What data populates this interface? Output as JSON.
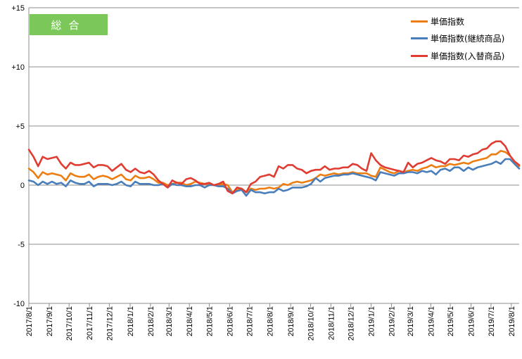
{
  "badge": {
    "label": "総合"
  },
  "chart_data": {
    "type": "line",
    "title": "総合",
    "ylim": [
      -10,
      15
    ],
    "yticks": [
      {
        "value": 15,
        "label": "+15"
      },
      {
        "value": 10,
        "label": "+10"
      },
      {
        "value": 5,
        "label": "+5"
      },
      {
        "value": 0,
        "label": "0"
      },
      {
        "value": -5,
        "label": "-5"
      },
      {
        "value": -10,
        "label": "-10"
      }
    ],
    "xlim_weeks": [
      0,
      106
    ],
    "xticks": [
      {
        "week": 0,
        "label": "2017/8/1"
      },
      {
        "week": 4.4,
        "label": "2017/9/1"
      },
      {
        "week": 8.7,
        "label": "2017/10/1"
      },
      {
        "week": 13.1,
        "label": "2017/11/1"
      },
      {
        "week": 17.4,
        "label": "2017/12/1"
      },
      {
        "week": 21.9,
        "label": "2018/1/1"
      },
      {
        "week": 26.3,
        "label": "2018/2/1"
      },
      {
        "week": 30.3,
        "label": "2018/3/1"
      },
      {
        "week": 34.7,
        "label": "2018/4/1"
      },
      {
        "week": 39.0,
        "label": "2018/5/1"
      },
      {
        "week": 43.4,
        "label": "2018/6/1"
      },
      {
        "week": 47.7,
        "label": "2018/7/1"
      },
      {
        "week": 52.1,
        "label": "2018/8/1"
      },
      {
        "week": 56.6,
        "label": "2018/9/1"
      },
      {
        "week": 60.9,
        "label": "2018/10/1"
      },
      {
        "week": 65.3,
        "label": "2018/11/1"
      },
      {
        "week": 69.6,
        "label": "2018/12/1"
      },
      {
        "week": 74.0,
        "label": "2019/1/1"
      },
      {
        "week": 78.4,
        "label": "2019/2/1"
      },
      {
        "week": 82.4,
        "label": "2019/3/1"
      },
      {
        "week": 86.9,
        "label": "2019/4/1"
      },
      {
        "week": 91.1,
        "label": "2019/5/1"
      },
      {
        "week": 95.6,
        "label": "2019/6/1"
      },
      {
        "week": 99.9,
        "label": "2019/7/1"
      },
      {
        "week": 104.3,
        "label": "2019/8/1"
      }
    ],
    "series": [
      {
        "name": "単価指数",
        "color": "#ed7d10",
        "values": [
          1.4,
          1.1,
          0.6,
          1.1,
          0.9,
          1.0,
          0.9,
          0.8,
          0.4,
          1.0,
          0.8,
          0.7,
          0.7,
          0.9,
          0.5,
          0.7,
          0.8,
          0.7,
          0.5,
          0.7,
          0.9,
          0.5,
          0.4,
          0.8,
          0.6,
          0.6,
          0.7,
          0.5,
          0.2,
          0.2,
          0.0,
          0.1,
          0.2,
          0.2,
          0.0,
          0.1,
          0.3,
          0.2,
          0.1,
          0.1,
          0.0,
          0.0,
          0.1,
          0.0,
          -0.6,
          -0.4,
          -0.3,
          -0.6,
          -0.3,
          -0.4,
          -0.3,
          -0.3,
          -0.2,
          -0.3,
          -0.2,
          0.1,
          0.0,
          0.2,
          0.3,
          0.2,
          0.3,
          0.4,
          0.6,
          0.9,
          0.8,
          0.9,
          1.0,
          0.9,
          1.0,
          1.0,
          1.1,
          1.0,
          1.0,
          1.0,
          0.8,
          0.7,
          1.5,
          1.3,
          1.1,
          1.0,
          1.2,
          1.1,
          1.2,
          1.3,
          1.2,
          1.4,
          1.5,
          1.7,
          1.5,
          1.6,
          1.6,
          1.8,
          1.7,
          1.8,
          1.9,
          1.8,
          2.0,
          2.1,
          2.2,
          2.3,
          2.6,
          2.6,
          2.9,
          2.8,
          2.5,
          2.0,
          1.6
        ]
      },
      {
        "name": "単価指数(継続商品)",
        "color": "#4a7ebb",
        "values": [
          0.4,
          0.3,
          0.0,
          0.3,
          0.1,
          0.3,
          0.1,
          0.2,
          -0.1,
          0.4,
          0.2,
          0.1,
          0.1,
          0.3,
          -0.1,
          0.1,
          0.1,
          0.1,
          0.0,
          0.1,
          0.3,
          0.0,
          -0.1,
          0.3,
          0.1,
          0.1,
          0.1,
          0.0,
          0.0,
          0.1,
          -0.2,
          0.1,
          0.0,
          0.0,
          -0.1,
          -0.1,
          0.0,
          0.0,
          -0.2,
          0.0,
          0.0,
          -0.1,
          -0.1,
          -0.3,
          -0.7,
          -0.5,
          -0.4,
          -0.9,
          -0.4,
          -0.6,
          -0.6,
          -0.7,
          -0.6,
          -0.6,
          -0.3,
          -0.5,
          -0.4,
          -0.2,
          -0.2,
          -0.2,
          -0.1,
          0.1,
          0.6,
          0.3,
          0.6,
          0.7,
          0.8,
          0.8,
          0.9,
          0.9,
          1.0,
          0.9,
          0.8,
          0.7,
          0.6,
          0.4,
          1.1,
          1.0,
          0.9,
          0.8,
          1.0,
          1.0,
          1.1,
          1.1,
          1.0,
          1.2,
          1.1,
          1.2,
          0.9,
          1.3,
          1.4,
          1.2,
          1.5,
          1.5,
          1.2,
          1.5,
          1.3,
          1.5,
          1.6,
          1.7,
          1.8,
          2.0,
          1.8,
          2.2,
          2.2,
          1.8,
          1.4
        ]
      },
      {
        "name": "単価指数(入替商品)",
        "color": "#e03c31",
        "values": [
          3.0,
          2.4,
          1.6,
          2.4,
          2.2,
          2.3,
          2.4,
          1.8,
          1.4,
          1.9,
          1.7,
          1.7,
          1.8,
          1.9,
          1.5,
          1.7,
          1.7,
          1.6,
          1.2,
          1.5,
          1.8,
          1.3,
          1.1,
          1.4,
          1.1,
          1.0,
          1.2,
          0.9,
          0.4,
          0.1,
          -0.2,
          0.4,
          0.2,
          0.1,
          0.5,
          0.6,
          0.4,
          0.1,
          0.1,
          0.2,
          0.0,
          0.1,
          0.3,
          -0.5,
          -0.7,
          -0.2,
          -0.3,
          -0.6,
          0.1,
          0.3,
          0.7,
          0.8,
          0.9,
          0.7,
          1.6,
          1.4,
          1.7,
          1.7,
          1.4,
          1.3,
          1.0,
          1.2,
          1.3,
          1.3,
          1.6,
          1.3,
          1.4,
          1.4,
          1.5,
          1.5,
          1.8,
          1.7,
          1.4,
          1.2,
          2.7,
          2.1,
          1.7,
          1.5,
          1.4,
          1.3,
          1.2,
          1.1,
          1.9,
          1.5,
          1.8,
          1.9,
          2.1,
          2.3,
          2.1,
          2.0,
          1.8,
          2.2,
          2.2,
          2.1,
          2.5,
          2.4,
          2.6,
          2.7,
          3.0,
          3.1,
          3.5,
          3.7,
          3.7,
          3.3,
          2.5,
          2.0,
          1.7
        ]
      }
    ],
    "grid": "horizontal",
    "legend": "top-right"
  }
}
